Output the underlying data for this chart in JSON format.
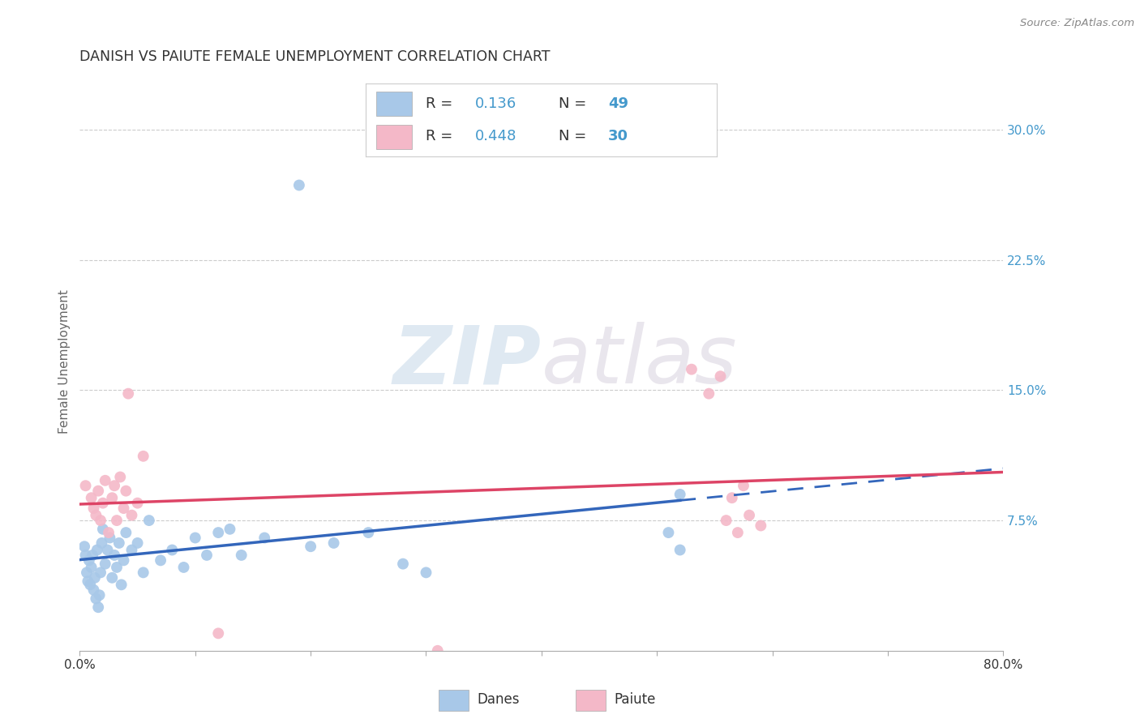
{
  "title": "DANISH VS PAIUTE FEMALE UNEMPLOYMENT CORRELATION CHART",
  "source": "Source: ZipAtlas.com",
  "ylabel": "Female Unemployment",
  "xlim": [
    0.0,
    0.8
  ],
  "ylim": [
    0.0,
    0.333
  ],
  "xticks": [
    0.0,
    0.1,
    0.2,
    0.3,
    0.4,
    0.5,
    0.6,
    0.7,
    0.8
  ],
  "xticklabels": [
    "0.0%",
    "",
    "",
    "",
    "",
    "",
    "",
    "",
    "80.0%"
  ],
  "yticks": [
    0.075,
    0.15,
    0.225,
    0.3
  ],
  "yticklabels": [
    "7.5%",
    "15.0%",
    "22.5%",
    "30.0%"
  ],
  "blue_R": "0.136",
  "blue_N": "49",
  "pink_R": "0.448",
  "pink_N": "30",
  "blue_color": "#a8c8e8",
  "pink_color": "#f4b8c8",
  "blue_line_color": "#3366bb",
  "pink_line_color": "#dd4466",
  "blue_scatter": [
    [
      0.004,
      0.06
    ],
    [
      0.005,
      0.055
    ],
    [
      0.006,
      0.045
    ],
    [
      0.007,
      0.04
    ],
    [
      0.008,
      0.052
    ],
    [
      0.009,
      0.038
    ],
    [
      0.01,
      0.048
    ],
    [
      0.011,
      0.055
    ],
    [
      0.012,
      0.035
    ],
    [
      0.013,
      0.042
    ],
    [
      0.014,
      0.03
    ],
    [
      0.015,
      0.058
    ],
    [
      0.016,
      0.025
    ],
    [
      0.017,
      0.032
    ],
    [
      0.018,
      0.045
    ],
    [
      0.019,
      0.062
    ],
    [
      0.02,
      0.07
    ],
    [
      0.022,
      0.05
    ],
    [
      0.024,
      0.058
    ],
    [
      0.026,
      0.065
    ],
    [
      0.028,
      0.042
    ],
    [
      0.03,
      0.055
    ],
    [
      0.032,
      0.048
    ],
    [
      0.034,
      0.062
    ],
    [
      0.036,
      0.038
    ],
    [
      0.038,
      0.052
    ],
    [
      0.04,
      0.068
    ],
    [
      0.045,
      0.058
    ],
    [
      0.05,
      0.062
    ],
    [
      0.055,
      0.045
    ],
    [
      0.06,
      0.075
    ],
    [
      0.07,
      0.052
    ],
    [
      0.08,
      0.058
    ],
    [
      0.09,
      0.048
    ],
    [
      0.1,
      0.065
    ],
    [
      0.11,
      0.055
    ],
    [
      0.12,
      0.068
    ],
    [
      0.13,
      0.07
    ],
    [
      0.14,
      0.055
    ],
    [
      0.16,
      0.065
    ],
    [
      0.2,
      0.06
    ],
    [
      0.22,
      0.062
    ],
    [
      0.25,
      0.068
    ],
    [
      0.28,
      0.05
    ],
    [
      0.3,
      0.045
    ],
    [
      0.51,
      0.068
    ],
    [
      0.52,
      0.058
    ],
    [
      0.52,
      0.09
    ],
    [
      0.19,
      0.268
    ]
  ],
  "pink_scatter": [
    [
      0.005,
      0.095
    ],
    [
      0.01,
      0.088
    ],
    [
      0.012,
      0.082
    ],
    [
      0.014,
      0.078
    ],
    [
      0.016,
      0.092
    ],
    [
      0.018,
      0.075
    ],
    [
      0.02,
      0.085
    ],
    [
      0.022,
      0.098
    ],
    [
      0.025,
      0.068
    ],
    [
      0.028,
      0.088
    ],
    [
      0.03,
      0.095
    ],
    [
      0.032,
      0.075
    ],
    [
      0.035,
      0.1
    ],
    [
      0.038,
      0.082
    ],
    [
      0.04,
      0.092
    ],
    [
      0.042,
      0.148
    ],
    [
      0.045,
      0.078
    ],
    [
      0.05,
      0.085
    ],
    [
      0.055,
      0.112
    ],
    [
      0.53,
      0.162
    ],
    [
      0.545,
      0.148
    ],
    [
      0.555,
      0.158
    ],
    [
      0.56,
      0.075
    ],
    [
      0.565,
      0.088
    ],
    [
      0.57,
      0.068
    ],
    [
      0.575,
      0.095
    ],
    [
      0.58,
      0.078
    ],
    [
      0.59,
      0.072
    ],
    [
      0.12,
      0.01
    ],
    [
      0.31,
      0.0
    ]
  ],
  "watermark_zip": "ZIP",
  "watermark_atlas": "atlas",
  "legend_r_color": "#4499cc",
  "legend_text_color": "#333333",
  "bg_color": "#ffffff",
  "grid_color": "#cccccc",
  "tick_color": "#4499cc",
  "source_color": "#888888",
  "title_color": "#333333"
}
